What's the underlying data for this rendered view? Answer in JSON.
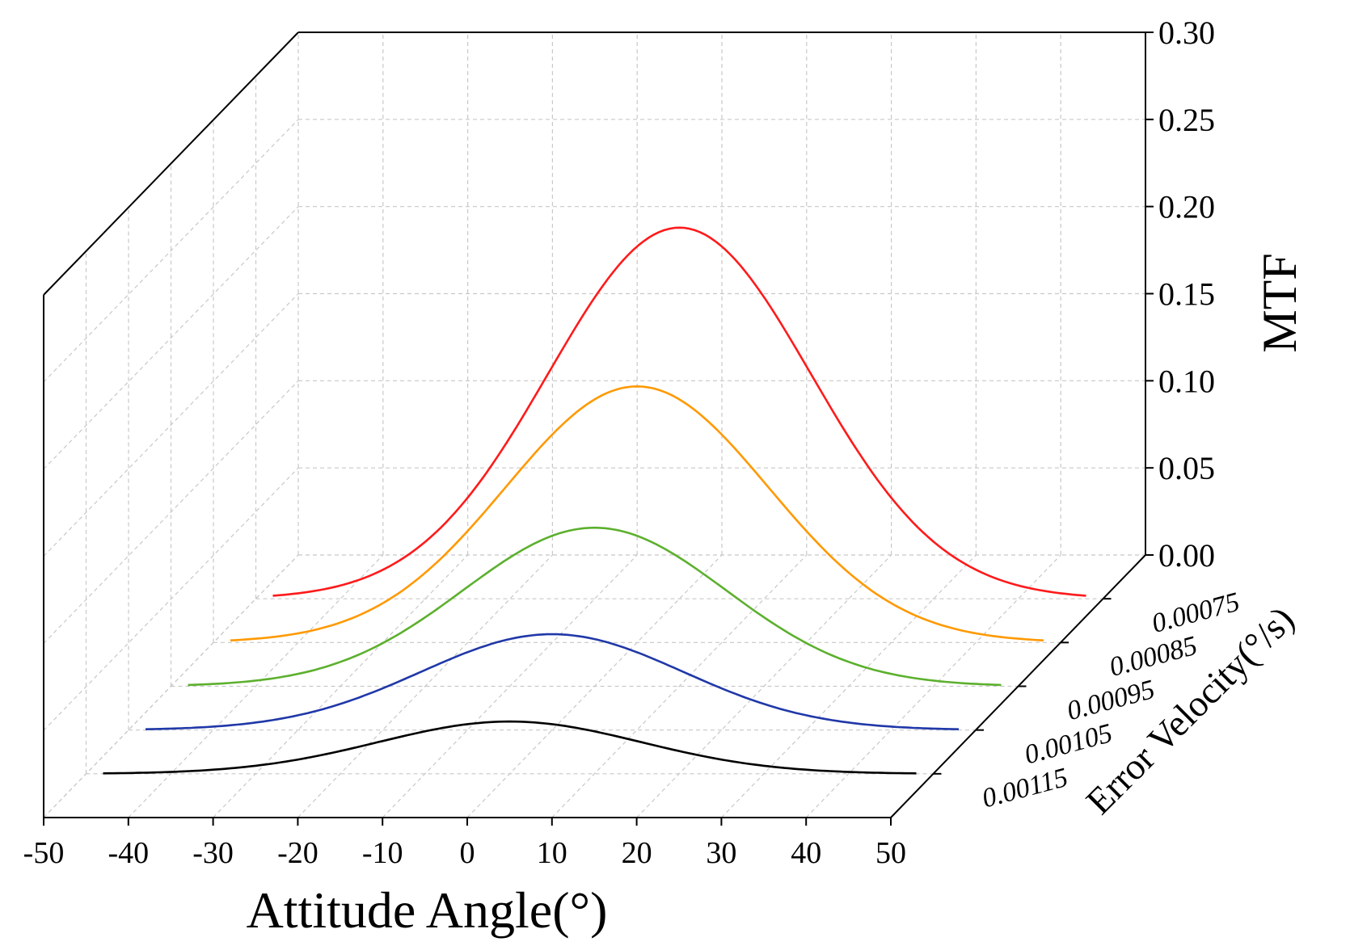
{
  "chart_data": {
    "type": "line",
    "projection": "3d-waterfall",
    "x": {
      "label": "Attitude Angle(°)",
      "ticks": [
        -50,
        -40,
        -30,
        -20,
        -10,
        0,
        10,
        20,
        30,
        40,
        50
      ],
      "tick_labels": [
        "-50",
        "-40",
        "-30",
        "-20",
        "-10",
        "0",
        "10",
        "20",
        "30",
        "40",
        "50"
      ],
      "range": [
        -50,
        50
      ]
    },
    "z": {
      "label": "MTF",
      "ticks": [
        0,
        0.05,
        0.1,
        0.15,
        0.2,
        0.25,
        0.3
      ],
      "tick_labels": [
        "0.00",
        "0.05",
        "0.10",
        "0.15",
        "0.20",
        "0.25",
        "0.30"
      ],
      "range": [
        0,
        0.3
      ]
    },
    "y": {
      "label": "Error Velocity(°/s)",
      "categories": [
        "0.00075",
        "0.00085",
        "0.00095",
        "0.00105",
        "0.00115"
      ]
    },
    "grid": true,
    "series": [
      {
        "name": "0.00075",
        "color": "#ff1a1a",
        "peak": 0.213,
        "mean": 0,
        "sigma": 15.5
      },
      {
        "name": "0.00085",
        "color": "#ff9900",
        "peak": 0.147,
        "mean": 0,
        "sigma": 15.5
      },
      {
        "name": "0.00095",
        "color": "#5cb02e",
        "peak": 0.091,
        "mean": 0,
        "sigma": 15.5
      },
      {
        "name": "0.00105",
        "color": "#2038a8",
        "peak": 0.055,
        "mean": 0,
        "sigma": 15.5
      },
      {
        "name": "0.00115",
        "color": "#000000",
        "peak": 0.03,
        "mean": 0,
        "sigma": 15.5
      }
    ]
  }
}
